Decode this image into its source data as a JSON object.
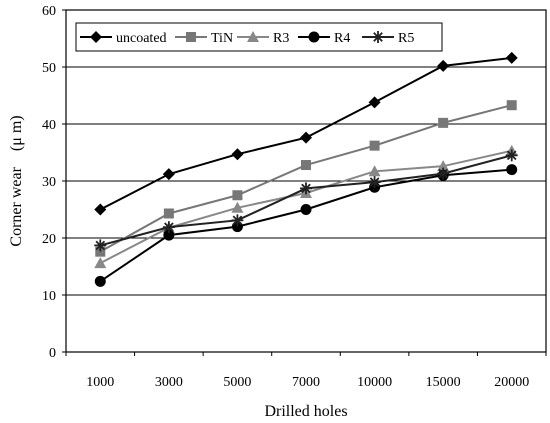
{
  "chart_data": {
    "type": "line",
    "title": "",
    "xlabel": "Drilled holes",
    "ylabel": "Corner wear　(μ m)",
    "categories": [
      "1000",
      "3000",
      "5000",
      "7000",
      "10000",
      "15000",
      "20000"
    ],
    "ylim": [
      0,
      60
    ],
    "yticks": [
      "0",
      "10",
      "20",
      "30",
      "40",
      "50",
      "60"
    ],
    "grid": "horizontal",
    "legend_position": "top-left",
    "series": [
      {
        "name": "uncoated",
        "marker": "diamond",
        "color": "#000000",
        "values": [
          25,
          31.2,
          34.7,
          37.6,
          43.8,
          50.2,
          51.6
        ]
      },
      {
        "name": "TiN",
        "marker": "square",
        "color": "#777777",
        "values": [
          17.6,
          24.3,
          27.5,
          32.8,
          36.2,
          40.2,
          43.3
        ]
      },
      {
        "name": "R3",
        "marker": "triangle",
        "color": "#888888",
        "values": [
          15.6,
          21.8,
          25.3,
          27.9,
          31.7,
          32.6,
          35.3
        ]
      },
      {
        "name": "R4",
        "marker": "circle",
        "color": "#000000",
        "values": [
          12.4,
          20.5,
          22,
          25,
          28.9,
          31,
          32
        ]
      },
      {
        "name": "R5",
        "marker": "star",
        "color": "#222222",
        "values": [
          18.7,
          21.9,
          23.1,
          28.7,
          29.8,
          31.3,
          34.5
        ]
      }
    ]
  }
}
